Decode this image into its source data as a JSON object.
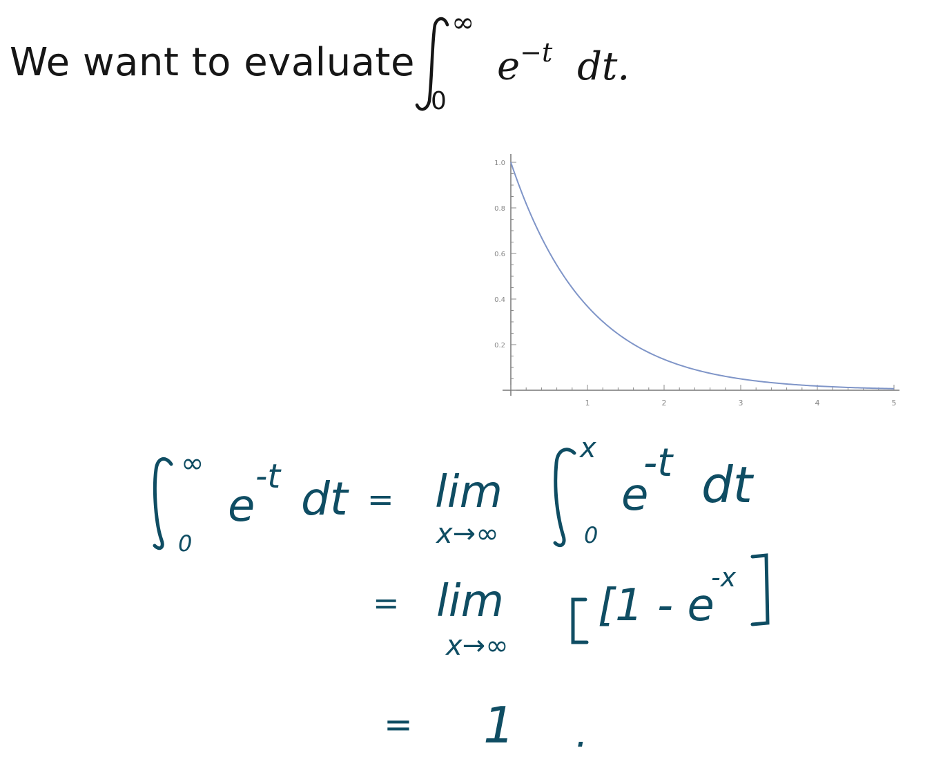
{
  "heading": {
    "text": "We want to evaluate",
    "upper_limit": "∞",
    "lower_limit": "0",
    "integrand_base": "e",
    "integrand_exponent": "−t",
    "differential": "dt."
  },
  "chart_data": {
    "type": "line",
    "function": "exp(-t)",
    "x": [
      0,
      0.25,
      0.5,
      0.75,
      1,
      1.25,
      1.5,
      1.75,
      2,
      2.25,
      2.5,
      2.75,
      3,
      3.25,
      3.5,
      3.75,
      4,
      4.25,
      4.5,
      4.75,
      5
    ],
    "y": [
      1.0,
      0.779,
      0.607,
      0.472,
      0.368,
      0.287,
      0.223,
      0.174,
      0.135,
      0.105,
      0.082,
      0.064,
      0.05,
      0.039,
      0.03,
      0.024,
      0.018,
      0.014,
      0.011,
      0.009,
      0.007
    ],
    "xlim": [
      0,
      5
    ],
    "ylim": [
      0,
      1.0
    ],
    "xticks": [
      "1",
      "2",
      "3",
      "4",
      "5"
    ],
    "yticks": [
      "0.2",
      "0.4",
      "0.6",
      "0.8",
      "1.0"
    ],
    "title": "",
    "xlabel": "",
    "ylabel": "",
    "grid": false,
    "line_color": "#7f95c8"
  },
  "derivation": {
    "ink_color": "#0f4d63",
    "line1": {
      "lhs_upper": "∞",
      "lhs_lower": "0",
      "lhs_integrand": "e",
      "lhs_exponent": "-t",
      "lhs_differential": "dt",
      "equals": "=",
      "lim": "lim",
      "lim_sub": "x→∞",
      "rhs_upper": "x",
      "rhs_lower": "0",
      "rhs_integrand": "e",
      "rhs_exponent": "-t",
      "rhs_differential": "dt"
    },
    "line2": {
      "equals": "=",
      "lim": "lim",
      "lim_sub": "x→∞",
      "expression": "[1 - e",
      "exponent": "-x",
      "close": "]"
    },
    "line3": {
      "equals": "=",
      "result": "1",
      "period": "."
    }
  }
}
